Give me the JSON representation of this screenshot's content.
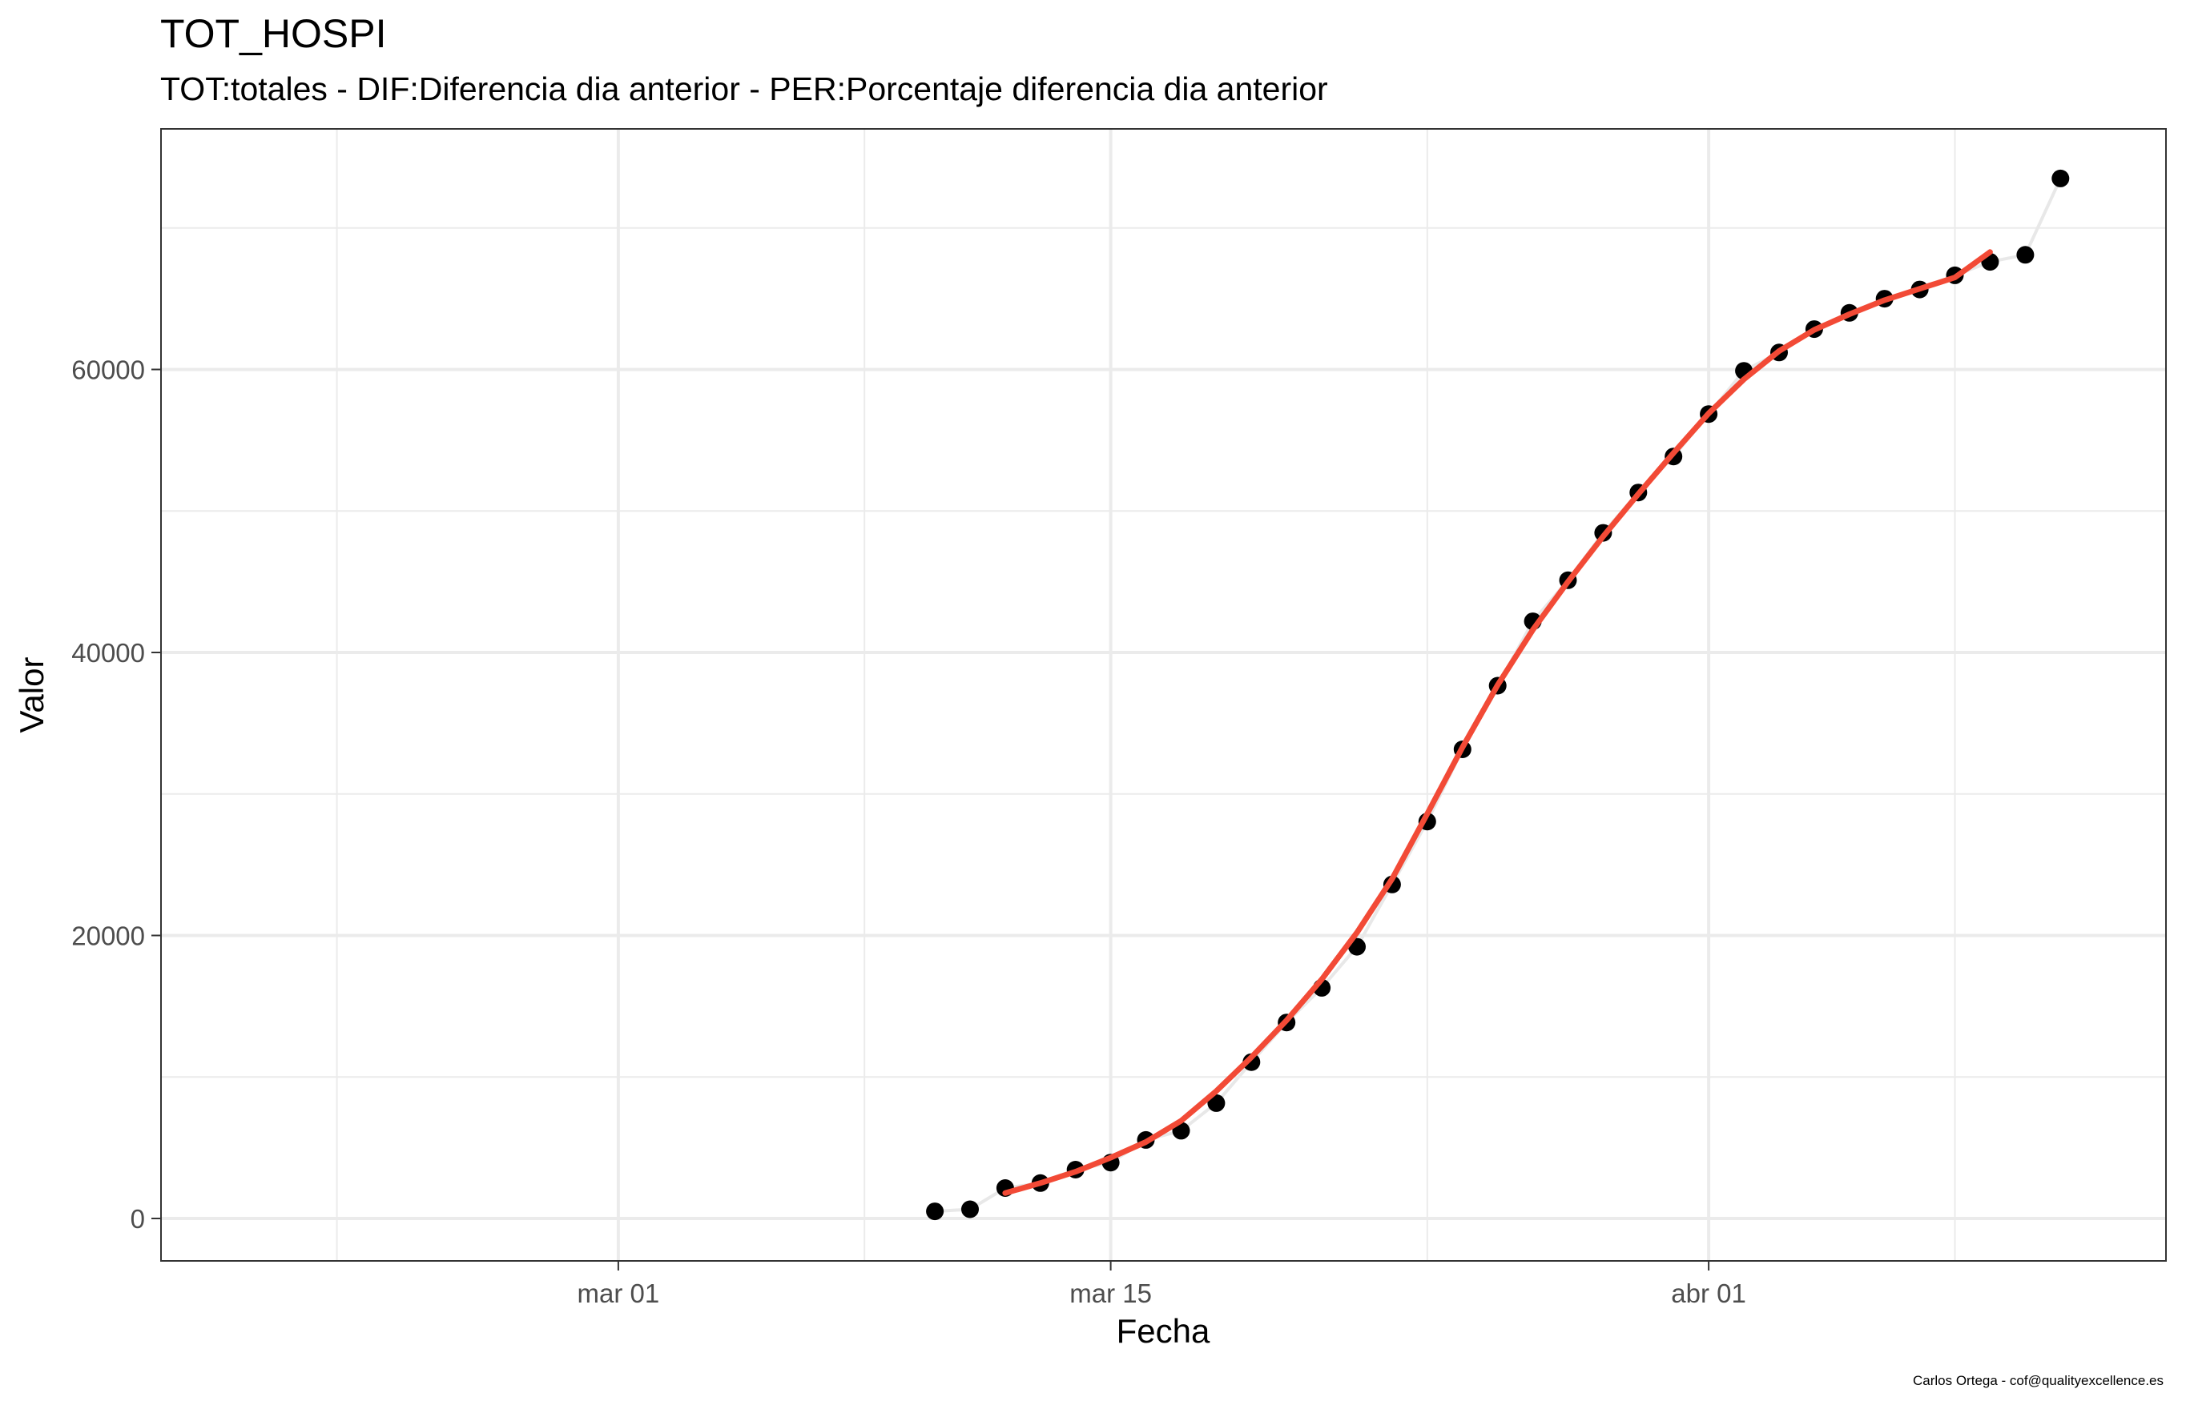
{
  "chart_data": {
    "type": "scatter",
    "title": "TOT_HOSPI",
    "subtitle": "TOT:totales - DIF:Diferencia dia anterior - PER:Porcentaje diferencia dia anterior",
    "xlabel": "Fecha",
    "ylabel": "Valor",
    "caption": "Carlos Ortega - cof@qualityexcellence.es",
    "x_ticks": [
      {
        "date": "2020-03-01",
        "label": "mar 01"
      },
      {
        "date": "2020-03-15",
        "label": "mar 15"
      },
      {
        "date": "2020-04-01",
        "label": "abr 01"
      }
    ],
    "x_minor_dates": [
      "2020-02-22",
      "2020-03-08",
      "2020-03-24",
      "2020-04-08"
    ],
    "xlim": [
      "2020-02-17",
      "2020-04-14"
    ],
    "y_ticks": [
      0,
      20000,
      40000,
      60000
    ],
    "y_minor": [
      10000,
      30000,
      50000,
      70000
    ],
    "ylim": [
      -3000,
      77000
    ],
    "grid": true,
    "colors": {
      "points": "#000000",
      "connect_line": "#e8e8e8",
      "smooth_line": "#f24a36",
      "grid": "#ebebeb"
    },
    "series": [
      {
        "type": "points",
        "x": [
          "2020-03-10",
          "2020-03-11",
          "2020-03-12",
          "2020-03-13",
          "2020-03-14",
          "2020-03-15",
          "2020-03-16",
          "2020-03-17",
          "2020-03-18",
          "2020-03-19",
          "2020-03-20",
          "2020-03-21",
          "2020-03-22",
          "2020-03-23",
          "2020-03-24",
          "2020-03-25",
          "2020-03-26",
          "2020-03-27",
          "2020-03-28",
          "2020-03-29",
          "2020-03-30",
          "2020-03-31",
          "2020-04-01",
          "2020-04-02",
          "2020-04-03",
          "2020-04-04",
          "2020-04-05",
          "2020-04-06",
          "2020-04-07",
          "2020-04-08",
          "2020-04-09",
          "2020-04-10",
          "2020-04-11"
        ],
        "y": [
          500,
          650,
          2150,
          2500,
          3450,
          3950,
          5550,
          6200,
          8150,
          11050,
          13850,
          16300,
          19200,
          23600,
          28050,
          33150,
          37650,
          42200,
          45100,
          48450,
          51300,
          53850,
          56850,
          59900,
          61200,
          62850,
          64000,
          65000,
          65650,
          66650,
          67600,
          68100,
          73500
        ]
      },
      {
        "type": "smooth",
        "x": [
          "2020-03-12",
          "2020-03-13",
          "2020-03-14",
          "2020-03-15",
          "2020-03-16",
          "2020-03-17",
          "2020-03-18",
          "2020-03-19",
          "2020-03-20",
          "2020-03-21",
          "2020-03-22",
          "2020-03-23",
          "2020-03-24",
          "2020-03-25",
          "2020-03-26",
          "2020-03-27",
          "2020-03-28",
          "2020-03-29",
          "2020-03-30",
          "2020-03-31",
          "2020-04-01",
          "2020-04-02",
          "2020-04-03",
          "2020-04-04",
          "2020-04-05",
          "2020-04-06",
          "2020-04-07",
          "2020-04-08",
          "2020-04-09"
        ],
        "y": [
          1800,
          2500,
          3300,
          4300,
          5400,
          6900,
          9000,
          11400,
          14000,
          16900,
          20200,
          24000,
          28600,
          33300,
          37700,
          41600,
          45000,
          48200,
          51200,
          54100,
          56900,
          59300,
          61300,
          62800,
          63900,
          64900,
          65700,
          66500,
          68300
        ]
      }
    ]
  }
}
